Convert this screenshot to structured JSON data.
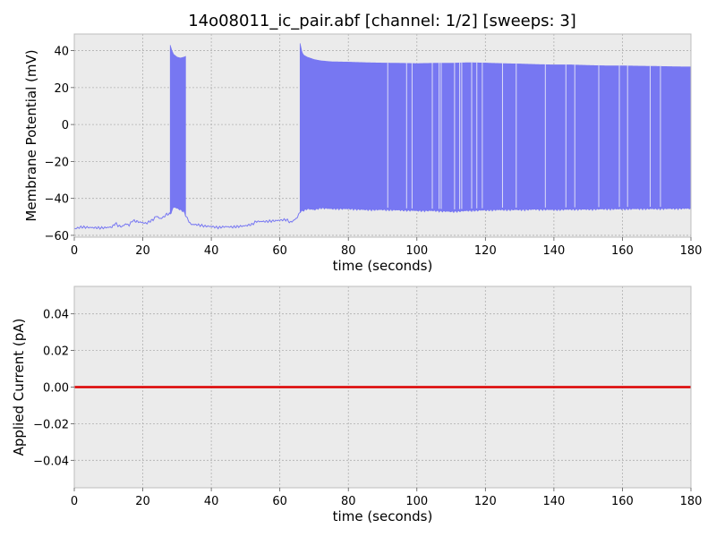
{
  "title": "14o08011_ic_pair.abf [channel: 1/2] [sweeps: 3]",
  "colors": {
    "panel_bg": "#ebebeb",
    "grid": "#b0b0b0",
    "trace": "#7777f2",
    "current": "#dd0000",
    "frame": "#bcbcbc"
  },
  "chart_data": [
    {
      "type": "line",
      "title": "14o08011_ic_pair.abf [channel: 1/2] [sweeps: 3]",
      "xlabel": "time (seconds)",
      "ylabel": "Membrane Potential (mV)",
      "xlim": [
        0,
        180
      ],
      "ylim": [
        -61,
        49
      ],
      "xticks": [
        0,
        20,
        40,
        60,
        80,
        100,
        120,
        140,
        160,
        180
      ],
      "yticks": [
        -60,
        -40,
        -20,
        0,
        20,
        40
      ],
      "grid": true,
      "series": [
        {
          "baseline": [
            [
              0,
              -56.5
            ],
            [
              2,
              -55.5
            ],
            [
              5,
              -55.8
            ],
            [
              8,
              -56
            ],
            [
              11,
              -55.5
            ],
            [
              12,
              -53.5
            ],
            [
              13,
              -55
            ],
            [
              14,
              -55.2
            ],
            [
              15,
              -53.8
            ],
            [
              16,
              -54.5
            ],
            [
              17,
              -52
            ],
            [
              19,
              -52.8
            ],
            [
              21,
              -53.5
            ],
            [
              23,
              -51.5
            ],
            [
              24,
              -49.5
            ],
            [
              25,
              -51
            ],
            [
              26,
              -50.2
            ],
            [
              27,
              -48.5
            ],
            [
              28,
              -48.5
            ],
            [
              29,
              -44.5
            ],
            [
              31,
              -46
            ],
            [
              32,
              -47
            ],
            [
              33,
              -51
            ],
            [
              34,
              -54
            ],
            [
              36,
              -54.3
            ],
            [
              38,
              -55
            ],
            [
              40,
              -55.2
            ],
            [
              42,
              -55.8
            ],
            [
              44,
              -55.3
            ],
            [
              46,
              -55.5
            ],
            [
              48,
              -55.2
            ],
            [
              50,
              -54.8
            ],
            [
              52,
              -54
            ],
            [
              53,
              -52.5
            ],
            [
              56,
              -52.5
            ],
            [
              58,
              -52.2
            ],
            [
              60,
              -51.8
            ],
            [
              62,
              -51.5
            ],
            [
              63,
              -53
            ],
            [
              64,
              -52
            ],
            [
              65,
              -50.5
            ],
            [
              66,
              -47
            ],
            [
              68,
              -45.5
            ],
            [
              70,
              -46
            ],
            [
              72,
              -45
            ],
            [
              75,
              -45.5
            ],
            [
              80,
              -45.5
            ],
            [
              85,
              -46
            ],
            [
              90,
              -46
            ],
            [
              95,
              -46.2
            ],
            [
              100,
              -46.5
            ],
            [
              105,
              -46.5
            ],
            [
              110,
              -47
            ],
            [
              115,
              -46.5
            ],
            [
              120,
              -46.2
            ],
            [
              125,
              -46
            ],
            [
              130,
              -46
            ],
            [
              135,
              -45.8
            ],
            [
              140,
              -46
            ],
            [
              145,
              -45.8
            ],
            [
              150,
              -45.8
            ],
            [
              155,
              -45.6
            ],
            [
              160,
              -45.6
            ],
            [
              165,
              -45.5
            ],
            [
              170,
              -45.5
            ],
            [
              175,
              -45.4
            ],
            [
              180,
              -45.3
            ]
          ],
          "spike_envelope": [
            [
              28,
              43
            ],
            [
              28.5,
              40
            ],
            [
              29,
              38
            ],
            [
              30,
              36.5
            ],
            [
              31,
              36
            ],
            [
              32,
              36.5
            ],
            [
              32.6,
              37
            ],
            [
              65.9,
              44
            ],
            [
              66.5,
              39
            ],
            [
              67,
              37.5
            ],
            [
              68,
              36.5
            ],
            [
              70,
              35.2
            ],
            [
              72,
              34.5
            ],
            [
              75,
              34
            ],
            [
              80,
              33.8
            ],
            [
              85,
              33.5
            ],
            [
              90,
              33.3
            ],
            [
              95,
              33.2
            ],
            [
              100,
              33
            ],
            [
              105,
              33.2
            ],
            [
              110,
              33.2
            ],
            [
              115,
              33.5
            ],
            [
              120,
              33.3
            ],
            [
              125,
              33
            ],
            [
              130,
              32.8
            ],
            [
              135,
              32.5
            ],
            [
              140,
              32.3
            ],
            [
              145,
              32.3
            ],
            [
              150,
              32
            ],
            [
              155,
              31.8
            ],
            [
              160,
              31.8
            ],
            [
              165,
              31.6
            ],
            [
              170,
              31.5
            ],
            [
              175,
              31.3
            ],
            [
              180,
              31.2
            ]
          ],
          "bursts": [
            [
              28,
              32.6
            ],
            [
              65.9,
              180
            ]
          ],
          "spike_gaps": [
            91.5,
            97,
            98.6,
            104.5,
            106.5,
            107.1,
            111,
            112.5,
            113.1,
            116,
            117.5,
            119.1,
            125,
            129,
            137.5,
            143.5,
            146.1,
            153.1,
            159.1,
            161.5,
            168.1,
            171.1
          ]
        }
      ]
    },
    {
      "type": "line",
      "xlabel": "time (seconds)",
      "ylabel": "Applied Current (pA)",
      "xlim": [
        0,
        180
      ],
      "ylim": [
        -0.055,
        0.055
      ],
      "xticks": [
        0,
        20,
        40,
        60,
        80,
        100,
        120,
        140,
        160,
        180
      ],
      "yticks": [
        -0.04,
        -0.02,
        0.0,
        0.02,
        0.04
      ],
      "ytick_labels": [
        "−0.04",
        "−0.02",
        "0.00",
        "0.02",
        "0.04"
      ],
      "grid": true,
      "series": [
        {
          "x": [
            0,
            180
          ],
          "y": [
            0,
            0
          ]
        }
      ]
    }
  ]
}
